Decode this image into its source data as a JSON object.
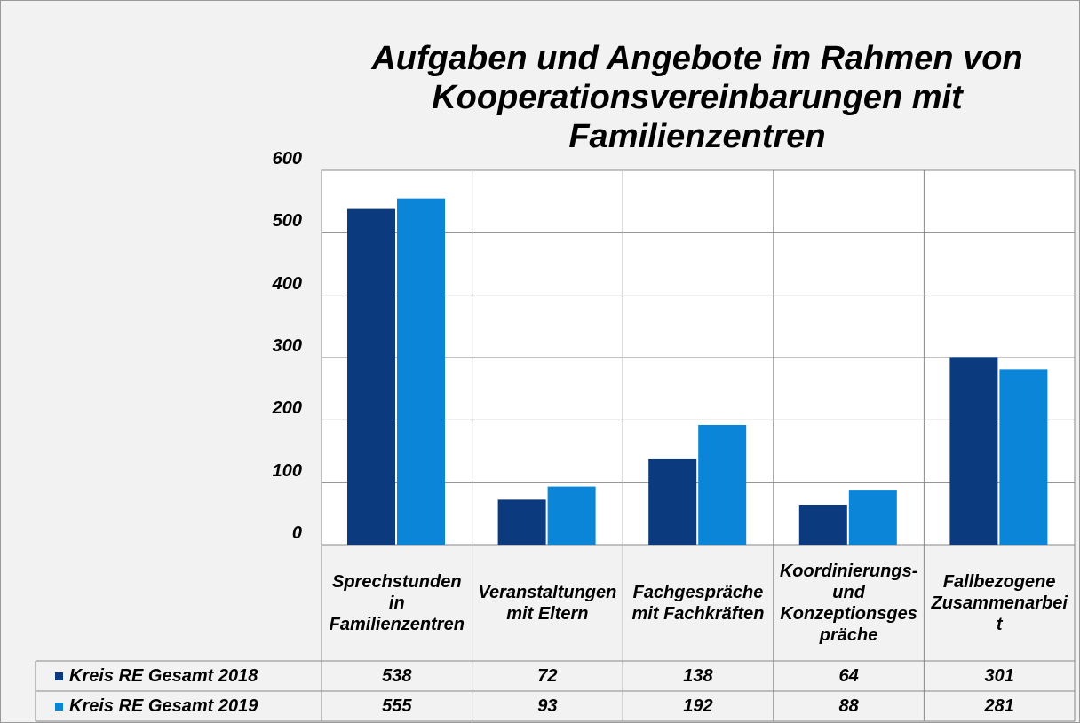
{
  "chart_data": {
    "type": "bar",
    "title": "Aufgaben und Angebote im Rahmen von Kooperationsvereinbarungen mit Familienzentren",
    "categories": [
      "Sprechstunden in Familienzentren",
      "Veranstaltungen mit Eltern",
      "Fachgespräche mit Fachkräften",
      "Koordinierungs- und Konzeptionsgespräche",
      "Fallbezogene Zusammenarbeit"
    ],
    "series": [
      {
        "name": "Kreis RE Gesamt 2018",
        "color": "#0b3a7e",
        "values": [
          538,
          72,
          138,
          64,
          301
        ]
      },
      {
        "name": "Kreis RE Gesamt 2019",
        "color": "#0a85d8",
        "values": [
          555,
          93,
          192,
          88,
          281
        ]
      }
    ],
    "ylim": [
      0,
      600
    ],
    "yticks": [
      0,
      100,
      200,
      300,
      400,
      500,
      600
    ],
    "grid": true
  }
}
